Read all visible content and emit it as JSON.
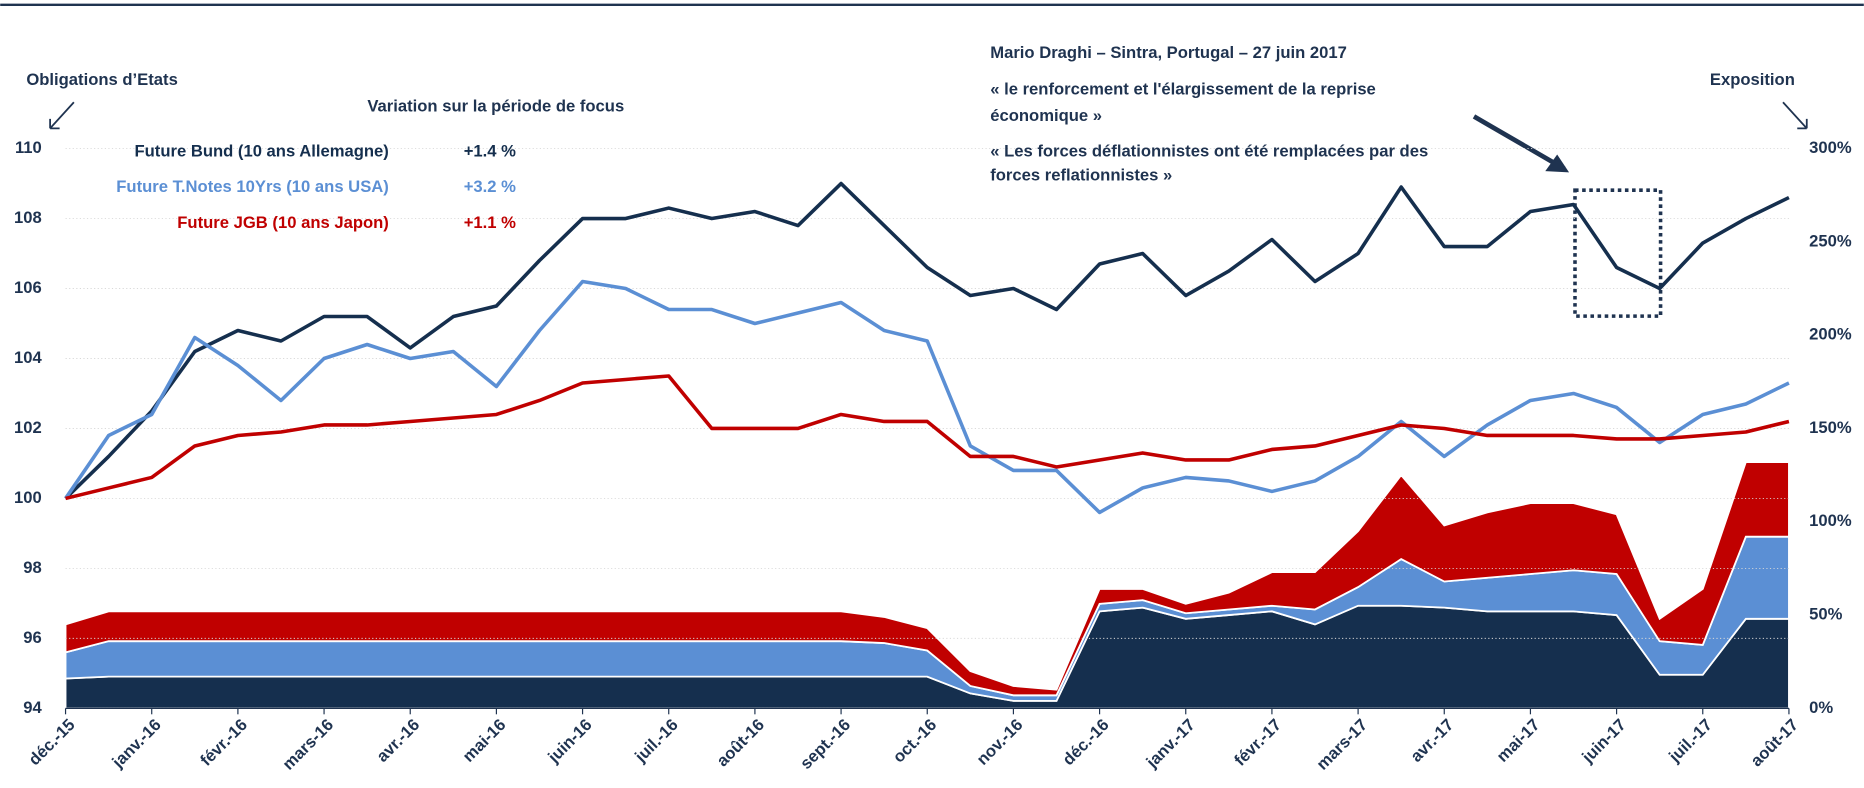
{
  "chart_data": [
    {
      "type": "line",
      "title": "Variation sur la période de focus",
      "ylabel": "Obligations d’Etats",
      "xlim": [
        0,
        20
      ],
      "xticks": [
        {
          "value": 0,
          "label": "déc.-15"
        },
        {
          "value": 1,
          "label": "janv.-16"
        },
        {
          "value": 2,
          "label": "févr.-16"
        },
        {
          "value": 3,
          "label": "mars-16"
        },
        {
          "value": 4,
          "label": "avr.-16"
        },
        {
          "value": 5,
          "label": "mai-16"
        },
        {
          "value": 6,
          "label": "juin-16"
        },
        {
          "value": 7,
          "label": "juil.-16"
        },
        {
          "value": 8,
          "label": "août-16"
        },
        {
          "value": 9,
          "label": "sept.-16"
        },
        {
          "value": 10,
          "label": "oct.-16"
        },
        {
          "value": 11,
          "label": "nov.-16"
        },
        {
          "value": 12,
          "label": "déc.-16"
        },
        {
          "value": 13,
          "label": "janv.-17"
        },
        {
          "value": 14,
          "label": "févr.-17"
        },
        {
          "value": 15,
          "label": "mars-17"
        },
        {
          "value": 16,
          "label": "avr.-17"
        },
        {
          "value": 17,
          "label": "mai-17"
        },
        {
          "value": 18,
          "label": "juin-17"
        },
        {
          "value": 19,
          "label": "juil.-17"
        },
        {
          "value": 20,
          "label": "août-17"
        }
      ],
      "ylim": [
        94,
        110
      ],
      "yticks": [
        94,
        96,
        98,
        100,
        102,
        104,
        106,
        108,
        110
      ],
      "grid": true,
      "x": [
        0,
        0.5,
        1,
        1.5,
        2,
        2.5,
        3,
        3.5,
        4,
        4.5,
        5,
        5.5,
        6,
        6.5,
        7,
        7.5,
        8,
        8.5,
        9,
        9.5,
        10,
        10.5,
        11,
        11.5,
        12,
        12.5,
        13,
        13.5,
        14,
        14.5,
        15,
        15.5,
        16,
        16.5,
        17,
        17.5,
        18,
        18.5,
        19,
        19.5,
        20
      ],
      "series": [
        {
          "name": "Future Bund (10 ans Allemagne)",
          "change": "+1.4 %",
          "color": "#152f4e",
          "values": [
            100,
            101.2,
            102.5,
            104.2,
            104.8,
            104.5,
            105.2,
            105.2,
            104.3,
            105.2,
            105.5,
            106.8,
            108,
            108,
            108.3,
            108,
            108.2,
            107.8,
            109,
            107.8,
            106.6,
            105.8,
            106,
            105.4,
            106.7,
            107,
            105.8,
            106.5,
            107.4,
            106.2,
            107,
            108.9,
            107.2,
            107.2,
            108.2,
            108.4,
            106.6,
            106,
            107.3,
            108,
            108.6
          ]
        },
        {
          "name": "Future T.Notes 10Yrs (10 ans USA)",
          "change": "+3.2 %",
          "color": "#5b8fd4",
          "values": [
            100,
            101.8,
            102.4,
            104.6,
            103.8,
            102.8,
            104,
            104.4,
            104,
            104.2,
            103.2,
            104.8,
            106.2,
            106,
            105.4,
            105.4,
            105,
            105.3,
            105.6,
            104.8,
            104.5,
            101.5,
            100.8,
            100.8,
            99.6,
            100.3,
            100.6,
            100.5,
            100.2,
            100.5,
            101.2,
            102.2,
            101.2,
            102.1,
            102.8,
            103,
            102.6,
            101.6,
            102.4,
            102.7,
            103.3
          ]
        },
        {
          "name": "Future JGB (10 ans Japon)",
          "change": "+1.1 %",
          "color": "#c00000",
          "values": [
            100,
            100.3,
            100.6,
            101.5,
            101.8,
            101.9,
            102.1,
            102.1,
            102.2,
            102.3,
            102.4,
            102.8,
            103.3,
            103.4,
            103.5,
            102,
            102,
            102,
            102.4,
            102.2,
            102.2,
            101.2,
            101.2,
            100.9,
            101.1,
            101.3,
            101.1,
            101.1,
            101.4,
            101.5,
            101.8,
            102.1,
            102,
            101.8,
            101.8,
            101.8,
            101.7,
            101.7,
            101.8,
            101.9,
            102.2
          ]
        }
      ],
      "annotations": [
        "Mario Draghi – Sintra, Portugal – 27 juin 2017",
        "« le renforcement et l'élargissement de la reprise",
        "économique »",
        "« Les forces déflationnistes ont été remplacées par des",
        "forces reflationnistes »"
      ]
    },
    {
      "type": "area",
      "stacked": true,
      "ylabel": "Exposition",
      "xlim": [
        0,
        20
      ],
      "ylim": [
        0,
        300
      ],
      "yticks": [
        {
          "value": 0,
          "label": "0%"
        },
        {
          "value": 50,
          "label": "50%"
        },
        {
          "value": 100,
          "label": "100%"
        },
        {
          "value": 150,
          "label": "150%"
        },
        {
          "value": 200,
          "label": "200%"
        },
        {
          "value": 250,
          "label": "250%"
        },
        {
          "value": 300,
          "label": "300%"
        }
      ],
      "x": [
        0,
        0.5,
        1,
        1.5,
        2,
        2.5,
        3,
        3.5,
        4,
        4.5,
        5,
        5.5,
        6,
        6.5,
        7,
        7.5,
        8,
        8.5,
        9,
        9.5,
        10,
        10.5,
        11,
        11.5,
        12,
        12.5,
        13,
        13.5,
        14,
        14.5,
        15,
        15.5,
        16,
        16.5,
        17,
        17.5,
        18,
        18.5,
        19,
        19.5,
        20
      ],
      "series": [
        {
          "color": "#152f4e",
          "values": [
            16,
            17,
            17,
            17,
            17,
            17,
            17,
            17,
            17,
            17,
            17,
            17,
            17,
            17,
            17,
            17,
            17,
            17,
            17,
            17,
            17,
            8,
            4,
            4,
            52,
            54,
            48,
            50,
            52,
            45,
            55,
            55,
            54,
            52,
            52,
            52,
            50,
            18,
            18,
            48,
            48
          ]
        },
        {
          "color": "#5b8fd4",
          "values": [
            14,
            19,
            19,
            19,
            19,
            19,
            19,
            19,
            19,
            19,
            19,
            19,
            19,
            19,
            19,
            19,
            19,
            19,
            19,
            18,
            14,
            4,
            3,
            3,
            4,
            4,
            3,
            3,
            3,
            8,
            10,
            25,
            14,
            18,
            20,
            22,
            22,
            18,
            16,
            44,
            44
          ]
        },
        {
          "color": "#c00000",
          "values": [
            15,
            16,
            16,
            16,
            16,
            16,
            16,
            16,
            16,
            16,
            16,
            16,
            16,
            16,
            16,
            16,
            16,
            16,
            16,
            14,
            12,
            8,
            5,
            3,
            8,
            6,
            5,
            9,
            18,
            20,
            30,
            45,
            30,
            35,
            38,
            36,
            32,
            12,
            30,
            40,
            40
          ]
        }
      ]
    }
  ]
}
